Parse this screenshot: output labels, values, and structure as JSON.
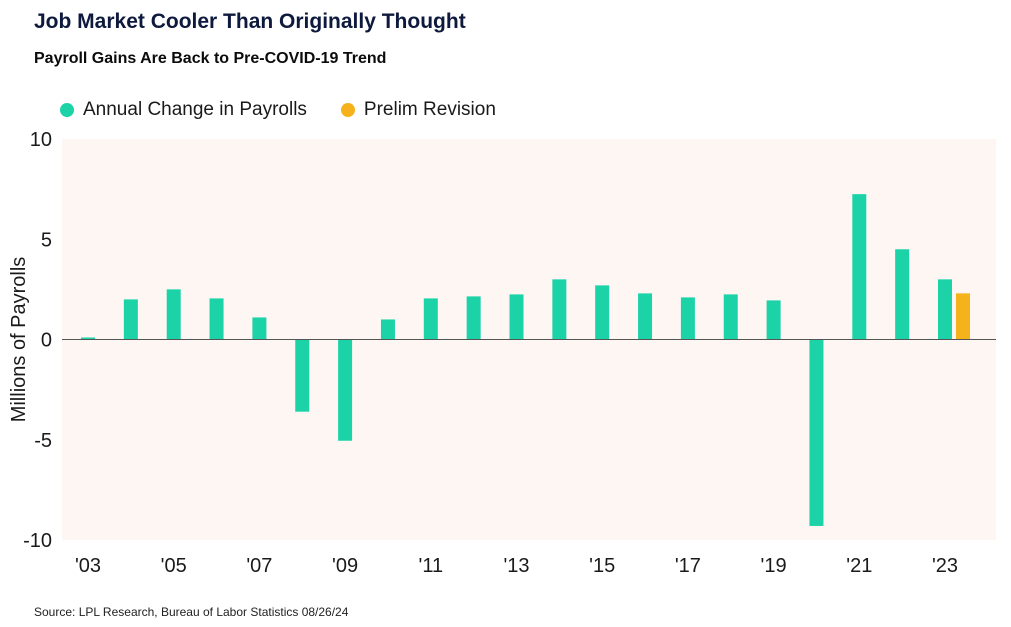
{
  "chart_data": {
    "type": "bar",
    "title": "Job Market Cooler Than Originally Thought",
    "subtitle": "Payroll Gains Are Back to Pre-COVID-19 Trend",
    "ylabel": "Millions of Payrolls",
    "xlabel": "",
    "ylim": [
      -10,
      10
    ],
    "yticks": [
      "10",
      "5",
      "0",
      "-5",
      "-10"
    ],
    "ytick_values": [
      10,
      5,
      0,
      -5,
      -10
    ],
    "xtick_labels": [
      "'03",
      "'05",
      "'07",
      "'09",
      "'11",
      "'13",
      "'15",
      "'17",
      "'19",
      "'21",
      "'23"
    ],
    "categories": [
      "2003",
      "2004",
      "2005",
      "2006",
      "2007",
      "2008",
      "2009",
      "2010",
      "2011",
      "2012",
      "2013",
      "2014",
      "2015",
      "2016",
      "2017",
      "2018",
      "2019",
      "2020",
      "2021",
      "2022",
      "2023"
    ],
    "series": [
      {
        "name": "Annual Change in Payrolls",
        "color": "#1cd3a8",
        "values": [
          0.1,
          2.0,
          2.5,
          2.05,
          1.1,
          -3.6,
          -5.05,
          1.0,
          2.05,
          2.15,
          2.25,
          3.0,
          2.7,
          2.3,
          2.1,
          2.25,
          1.95,
          -9.3,
          7.25,
          4.5,
          3.0
        ]
      },
      {
        "name": "Prelim Revision",
        "color": "#f6b21b",
        "values": [
          null,
          null,
          null,
          null,
          null,
          null,
          null,
          null,
          null,
          null,
          null,
          null,
          null,
          null,
          null,
          null,
          null,
          null,
          null,
          null,
          2.3
        ]
      }
    ],
    "source": "Source: LPL Research, Bureau of Labor Statistics 08/26/24"
  }
}
